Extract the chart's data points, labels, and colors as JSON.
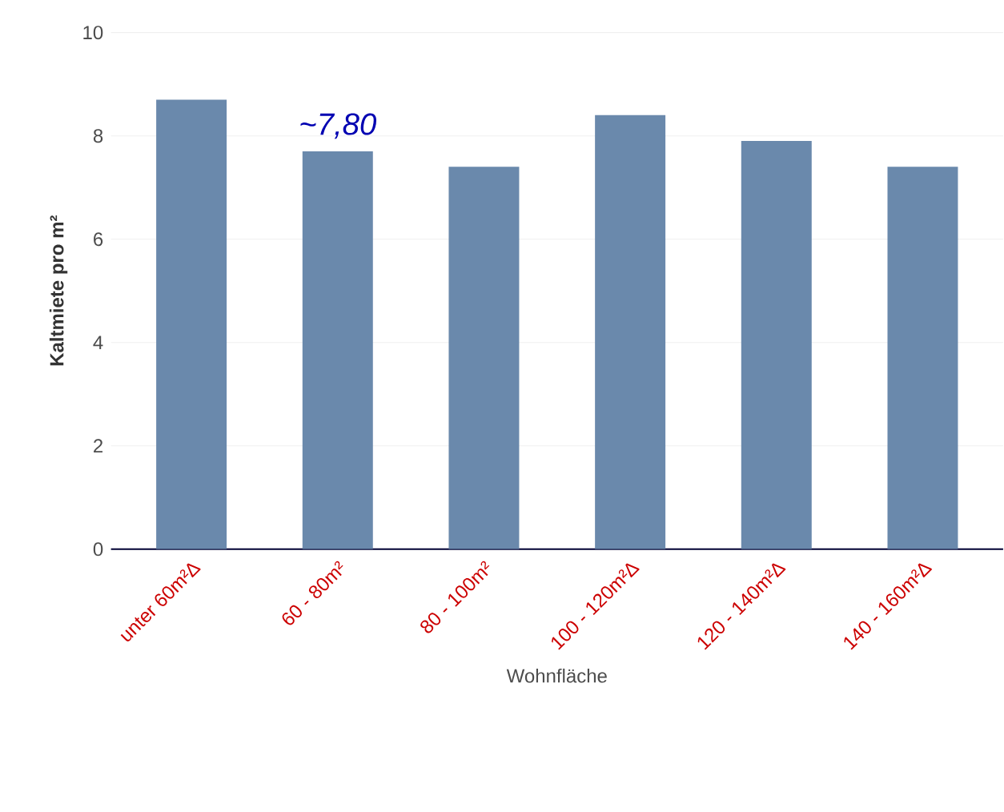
{
  "chart_data": {
    "type": "bar",
    "xlabel": "Wohnfläche",
    "ylabel": "Kaltmiete pro m²",
    "categories": [
      "unter 60m²∆",
      "60 - 80m²",
      "80 - 100m²",
      "100 - 120m²∆",
      "120 - 140m²∆",
      "140 - 160m²∆"
    ],
    "values": [
      8.7,
      7.7,
      7.4,
      8.4,
      7.9,
      7.4
    ],
    "color": "#6a89ac",
    "ylim": [
      0,
      10
    ],
    "yticks": [
      0,
      2,
      4,
      6,
      8,
      10
    ],
    "grid": "y",
    "annotations": [
      {
        "text": "~7,80",
        "x": "60 - 80m²",
        "y": 7.8
      }
    ]
  }
}
